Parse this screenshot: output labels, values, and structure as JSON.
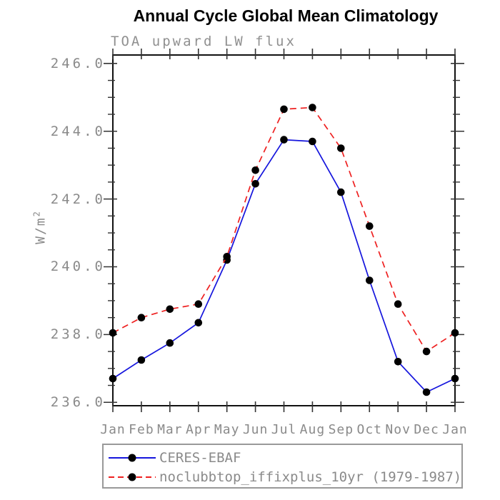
{
  "chart_data": {
    "type": "line",
    "title": "Annual Cycle Global Mean Climatology",
    "subtitle": "TOA upward LW flux",
    "ylabel": "W/m²",
    "ylabel_base": "W/m",
    "ylabel_sup": "2",
    "xlabel": "",
    "categories": [
      "Jan",
      "Feb",
      "Mar",
      "Apr",
      "May",
      "Jun",
      "Jul",
      "Aug",
      "Sep",
      "Oct",
      "Nov",
      "Dec",
      "Jan"
    ],
    "series": [
      {
        "name": "CERES-EBAF",
        "color": "#1515dd",
        "line_style": "solid",
        "marker": "filled-circle",
        "marker_color": "#000000",
        "values": [
          236.7,
          237.25,
          237.75,
          238.35,
          240.2,
          242.45,
          243.75,
          243.7,
          242.2,
          239.6,
          237.2,
          236.3,
          236.7
        ]
      },
      {
        "name": "noclubbtop_iffixplus_10yr (1979-1987)",
        "color": "#ee2020",
        "line_style": "dashed",
        "marker": "filled-circle",
        "marker_color": "#000000",
        "values": [
          238.05,
          238.5,
          238.75,
          238.9,
          240.3,
          242.85,
          244.65,
          244.7,
          243.5,
          241.2,
          238.9,
          237.5,
          238.05
        ]
      }
    ],
    "yticks": [
      236.0,
      238.0,
      240.0,
      242.0,
      244.0,
      246.0
    ],
    "ytick_labels": [
      "236.0",
      "238.0",
      "240.0",
      "242.0",
      "244.0",
      "246.0"
    ],
    "y_minor_step": 0.5,
    "ylim": [
      235.9,
      246.25
    ],
    "grid": false,
    "legend_position": "bottom-left",
    "axis_color": "#111111",
    "tick_color": "#333333",
    "text_color": "#8a8a8a"
  }
}
